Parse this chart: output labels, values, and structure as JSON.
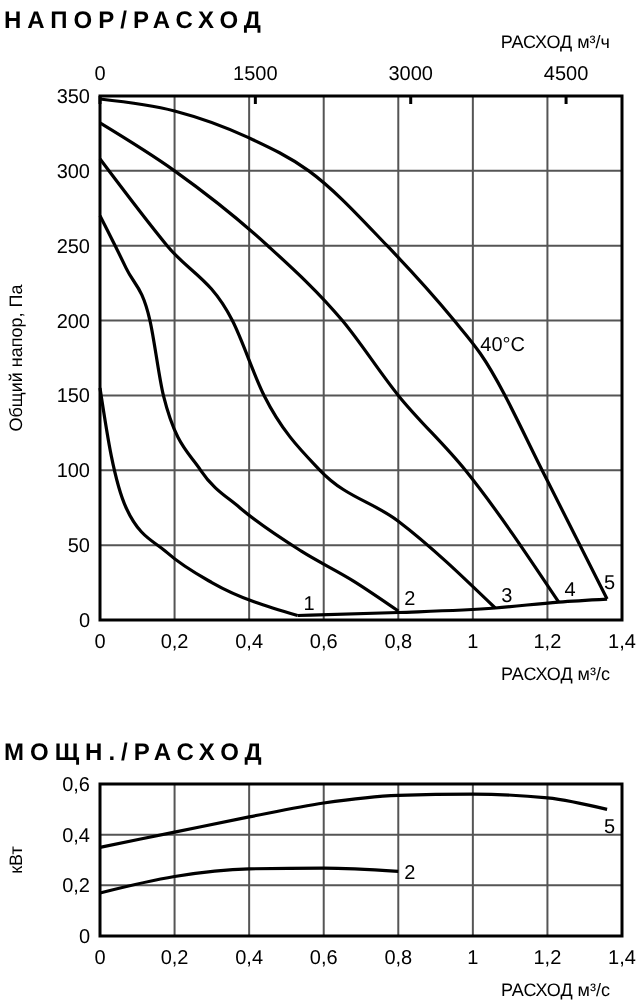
{
  "chart_data": [
    {
      "type": "line",
      "title": "НАПОР/РАСХОД",
      "xlabel": "РАСХОД м³/с",
      "ylabel": "Общий напор, Па",
      "x2label": "РАСХОД м³/ч",
      "xlim": [
        0,
        1.4
      ],
      "xticks": [
        {
          "value": 0,
          "label": "0"
        },
        {
          "value": 0.2,
          "label": "0,2"
        },
        {
          "value": 0.4,
          "label": "0,4"
        },
        {
          "value": 0.6,
          "label": "0,6"
        },
        {
          "value": 0.8,
          "label": "0,8"
        },
        {
          "value": 1,
          "label": "1"
        },
        {
          "value": 1.2,
          "label": "1,2"
        },
        {
          "value": 1.4,
          "label": "1,4"
        }
      ],
      "ylim": [
        0,
        350
      ],
      "yticks": [
        {
          "value": 0,
          "label": "0"
        },
        50,
        100,
        150,
        200,
        250,
        300,
        350
      ],
      "x2lim": [
        0,
        5040
      ],
      "x2ticks": [
        {
          "value": 0,
          "label": "0"
        },
        1500,
        3000,
        4500
      ],
      "grid": true,
      "series": [
        {
          "name": "1",
          "color": "#000000",
          "x": [
            0,
            0.03,
            0.07,
            0.18,
            0.3,
            0.53
          ],
          "values": [
            155,
            110,
            75,
            45,
            25,
            3
          ]
        },
        {
          "name": "2",
          "color": "#000000",
          "x": [
            0,
            0.07,
            0.134,
            0.17,
            0.27,
            0.375,
            0.54,
            0.68,
            0.8
          ],
          "values": [
            270,
            235,
            200,
            150,
            100,
            75,
            46,
            26,
            6
          ]
        },
        {
          "name": "3",
          "color": "#000000",
          "x": [
            0,
            0.18,
            0.355,
            0.44,
            0.59,
            0.8,
            1.06
          ],
          "values": [
            308,
            250,
            200,
            150,
            100,
            66,
            8
          ]
        },
        {
          "name": "4",
          "color": "#000000",
          "x": [
            0,
            0.2,
            0.45,
            0.65,
            0.8,
            0.98,
            1.23
          ],
          "values": [
            332,
            300,
            250,
            200,
            150,
            100,
            12
          ]
        },
        {
          "name": "5",
          "color": "#000000",
          "x": [
            0,
            0.2,
            0.4,
            0.56,
            0.77,
            0.95,
            1.02,
            1.2,
            1.36
          ],
          "values": [
            348,
            340,
            322,
            300,
            250,
            200,
            178,
            93,
            14
          ]
        },
        {
          "color": "#000000",
          "x": [
            0.53,
            0.8,
            1.06,
            1.23,
            1.36
          ],
          "values": [
            3,
            5,
            8,
            12,
            14
          ]
        }
      ],
      "annotations": [
        {
          "text": "40°C",
          "x": 1.02,
          "y": 180
        }
      ]
    },
    {
      "type": "line",
      "title": "МОЩН./РАСХОД",
      "xlabel": "РАСХОД м³/с",
      "ylabel": "кВт",
      "xlim": [
        0,
        1.4
      ],
      "xticks": [
        {
          "value": 0,
          "label": "0"
        },
        {
          "value": 0.2,
          "label": "0,2"
        },
        {
          "value": 0.4,
          "label": "0,4"
        },
        {
          "value": 0.6,
          "label": "0,6"
        },
        {
          "value": 0.8,
          "label": "0,8"
        },
        {
          "value": 1,
          "label": "1"
        },
        {
          "value": 1.2,
          "label": "1,2"
        },
        {
          "value": 1.4,
          "label": "1,4"
        }
      ],
      "ylim": [
        0,
        0.6
      ],
      "yticks": [
        {
          "value": 0,
          "label": "0"
        },
        {
          "value": 0.2,
          "label": "0,2"
        },
        {
          "value": 0.4,
          "label": "0,4"
        },
        {
          "value": 0.6,
          "label": "0,6"
        }
      ],
      "grid": true,
      "series": [
        {
          "name": "2",
          "color": "#000000",
          "x": [
            0,
            0.2,
            0.4,
            0.6,
            0.8
          ],
          "values": [
            0.17,
            0.235,
            0.265,
            0.268,
            0.255
          ]
        },
        {
          "name": "5",
          "color": "#000000",
          "x": [
            0,
            0.2,
            0.4,
            0.6,
            0.8,
            1.0,
            1.2,
            1.36
          ],
          "values": [
            0.35,
            0.41,
            0.47,
            0.525,
            0.555,
            0.56,
            0.545,
            0.5
          ]
        }
      ]
    }
  ]
}
